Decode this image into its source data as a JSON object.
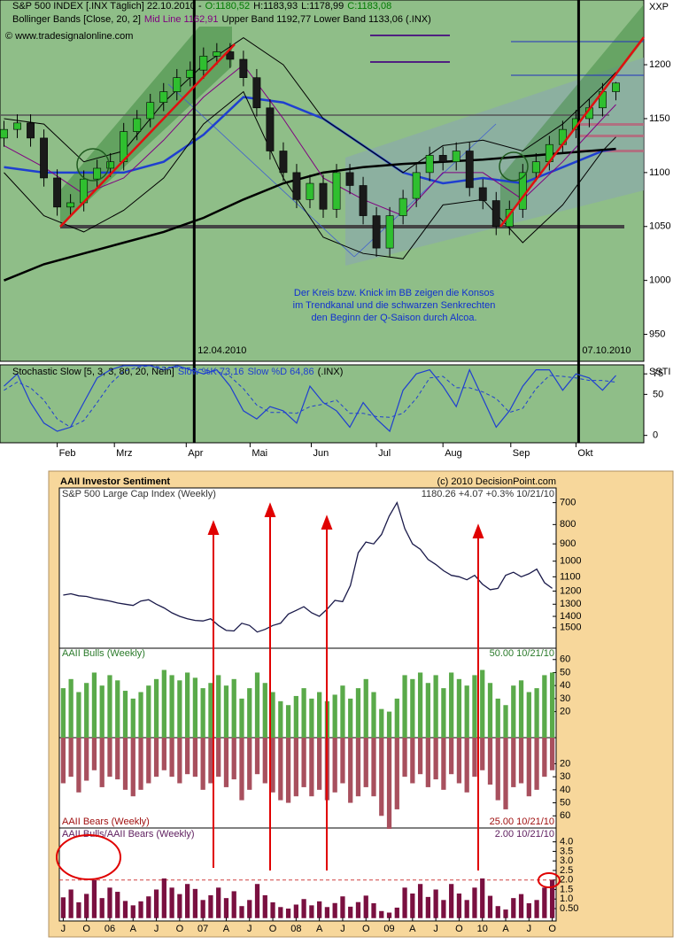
{
  "chart_data": [
    {
      "type": "candlestick",
      "header": [
        {
          "text": "S&P 500 INDEX [.INX  Täglich] 22.10.2010 -",
          "color": "#000000"
        },
        {
          "text": "O:1180,52",
          "color": "#007a00"
        },
        {
          "text": "H:1183,93",
          "color": "#000000"
        },
        {
          "text": "L:1178,99",
          "color": "#000000"
        },
        {
          "text": "C:1183,08",
          "color": "#007a00"
        }
      ],
      "subheader": [
        {
          "text": "Bollinger Bands [Close, 20, 2]",
          "color": "#000000"
        },
        {
          "text": "Mid Line 1162,91",
          "color": "#800080"
        },
        {
          "text": "Upper Band 1192,77 Lower Band 1133,06 (.INX)",
          "color": "#000000"
        }
      ],
      "source": "© www.tradesignalonline.com",
      "axis_label": "XXP",
      "note": [
        "Der Kreis bzw. Knick im BB zeigen die Konsos",
        "im Trendkanal und die schwarzen Senkrechten",
        "den Beginn der Q-Saison durch Alcoa."
      ],
      "markers": [
        {
          "x": 14.3,
          "label": "12.04.2010"
        },
        {
          "x": 43.2,
          "label": "07.10.2010"
        }
      ],
      "open": [
        1132,
        1140,
        1146,
        1132,
        1095,
        1068,
        1072,
        1094,
        1104,
        1110,
        1138,
        1150,
        1165,
        1175,
        1188,
        1195,
        1208,
        1212,
        1205,
        1188,
        1160,
        1120,
        1100,
        1075,
        1090,
        1066,
        1100,
        1088,
        1060,
        1030,
        1060,
        1076,
        1100,
        1116,
        1110,
        1120,
        1086,
        1074,
        1050,
        1066,
        1100,
        1110,
        1126,
        1140,
        1150,
        1160,
        1175
      ],
      "high": [
        1148,
        1154,
        1154,
        1140,
        1103,
        1080,
        1102,
        1112,
        1118,
        1146,
        1158,
        1173,
        1183,
        1196,
        1203,
        1216,
        1220,
        1220,
        1213,
        1196,
        1168,
        1128,
        1108,
        1098,
        1098,
        1108,
        1108,
        1096,
        1068,
        1068,
        1084,
        1108,
        1124,
        1124,
        1128,
        1128,
        1094,
        1082,
        1074,
        1108,
        1118,
        1134,
        1148,
        1158,
        1168,
        1183,
        1184
      ],
      "low": [
        1124,
        1132,
        1124,
        1087,
        1060,
        1060,
        1064,
        1086,
        1096,
        1102,
        1130,
        1142,
        1157,
        1167,
        1180,
        1187,
        1200,
        1197,
        1180,
        1152,
        1112,
        1092,
        1067,
        1067,
        1058,
        1058,
        1080,
        1052,
        1022,
        1022,
        1052,
        1068,
        1092,
        1102,
        1102,
        1078,
        1066,
        1042,
        1042,
        1058,
        1092,
        1102,
        1118,
        1132,
        1142,
        1152,
        1167
      ],
      "close": [
        1140,
        1146,
        1132,
        1095,
        1068,
        1072,
        1094,
        1104,
        1110,
        1138,
        1150,
        1165,
        1175,
        1188,
        1195,
        1208,
        1212,
        1205,
        1188,
        1160,
        1120,
        1100,
        1075,
        1090,
        1066,
        1100,
        1088,
        1060,
        1030,
        1060,
        1076,
        1100,
        1116,
        1110,
        1120,
        1086,
        1074,
        1050,
        1066,
        1100,
        1110,
        1126,
        1140,
        1150,
        1160,
        1175,
        1183
      ],
      "up_color": "#2fbf2f",
      "down_color": "#1a1a1a",
      "overlays": [
        {
          "color": "#1f3fd0",
          "width": 2.5,
          "x": [
            0,
            3,
            6,
            9,
            12,
            15,
            18,
            21,
            24,
            27,
            30,
            33,
            36,
            39,
            42,
            45,
            46
          ],
          "values": [
            1105,
            1100,
            1100,
            1100,
            1110,
            1135,
            1170,
            1165,
            1150,
            1125,
            1100,
            1090,
            1095,
            1090,
            1105,
            1120,
            1122
          ]
        },
        {
          "color": "#000000",
          "width": 2.5,
          "x": [
            0,
            3,
            6,
            9,
            12,
            15,
            18,
            21,
            24,
            27,
            30,
            33,
            36,
            39,
            42,
            45,
            46
          ],
          "values": [
            1000,
            1015,
            1025,
            1035,
            1045,
            1058,
            1075,
            1090,
            1100,
            1105,
            1108,
            1110,
            1112,
            1115,
            1118,
            1121,
            1122
          ]
        },
        {
          "color": "#800080",
          "width": 1,
          "x": [
            0,
            3,
            6,
            9,
            12,
            15,
            18,
            21,
            24,
            27,
            30,
            33,
            36,
            39,
            42,
            45,
            46
          ],
          "values": [
            1125,
            1105,
            1080,
            1095,
            1130,
            1170,
            1200,
            1150,
            1095,
            1075,
            1060,
            1100,
            1100,
            1075,
            1110,
            1150,
            1163
          ]
        },
        {
          "color": "#000000",
          "width": 1,
          "x": [
            0,
            3,
            6,
            9,
            12,
            15,
            18,
            21,
            24,
            27,
            30,
            33,
            36,
            39,
            42,
            45,
            46
          ],
          "values": [
            1150,
            1145,
            1110,
            1120,
            1165,
            1200,
            1225,
            1200,
            1150,
            1125,
            1100,
            1125,
            1130,
            1120,
            1145,
            1180,
            1193
          ]
        },
        {
          "color": "#000000",
          "width": 1,
          "x": [
            0,
            3,
            6,
            9,
            12,
            15,
            18,
            21,
            24,
            27,
            30,
            33,
            36,
            39,
            42,
            45,
            46
          ],
          "values": [
            1100,
            1060,
            1045,
            1065,
            1095,
            1145,
            1175,
            1095,
            1040,
            1025,
            1020,
            1070,
            1075,
            1035,
            1070,
            1120,
            1133
          ]
        }
      ],
      "xlim": [
        -0.3,
        48.1
      ],
      "xticks": [
        {
          "value": 4,
          "label": "Feb"
        },
        {
          "value": 8.3,
          "label": "Mrz"
        },
        {
          "value": 13.7,
          "label": "Apr"
        },
        {
          "value": 18.5,
          "label": "Mai"
        },
        {
          "value": 23.1,
          "label": "Jun"
        },
        {
          "value": 28,
          "label": "Jul"
        },
        {
          "value": 33,
          "label": "Aug"
        },
        {
          "value": 38.1,
          "label": "Sep"
        },
        {
          "value": 43,
          "label": "Okt"
        }
      ],
      "ylim": [
        925,
        1260
      ],
      "yticks": [
        950,
        1000,
        1050,
        1100,
        1150,
        1200
      ]
    },
    {
      "type": "line",
      "header": [
        {
          "text": "Stochastic Slow [5, 3, 3, 80, 20, Nein]",
          "color": "#000000"
        },
        {
          "text": "Slow %K 73,16",
          "color": "#1f3fd0"
        },
        {
          "text": "Slow %D 64,86",
          "color": "#1f3fd0"
        },
        {
          "text": "(.INX)",
          "color": "#000000"
        }
      ],
      "axis_label": "SSTI",
      "series": [
        {
          "color": "#1f3fd0",
          "dash": false,
          "values": [
            60,
            75,
            40,
            15,
            5,
            10,
            40,
            70,
            80,
            85,
            85,
            85,
            80,
            85,
            80,
            75,
            80,
            60,
            30,
            20,
            35,
            30,
            15,
            60,
            40,
            30,
            10,
            40,
            20,
            5,
            55,
            75,
            80,
            60,
            35,
            80,
            45,
            10,
            30,
            60,
            80,
            80,
            55,
            75,
            70,
            55,
            73
          ]
        },
        {
          "color": "#1f3fd0",
          "dash": true,
          "values": [
            55,
            65,
            58,
            43,
            20,
            10,
            18,
            40,
            63,
            78,
            83,
            85,
            83,
            83,
            82,
            80,
            78,
            72,
            57,
            37,
            28,
            28,
            27,
            35,
            38,
            43,
            27,
            27,
            23,
            22,
            27,
            45,
            70,
            72,
            58,
            58,
            53,
            45,
            28,
            33,
            57,
            73,
            72,
            70,
            67,
            67,
            65
          ]
        }
      ],
      "ylim": [
        -9,
        86
      ],
      "yticks": [
        0,
        50,
        75
      ]
    },
    {
      "type": "line",
      "panel_title": "AAII Investor Sentiment",
      "copyright": "(c) 2010 DecisionPoint.com",
      "title": "S&P 500 Large Cap Index (Weekly)",
      "last": "1180.26  +4.07  +0.3%  10/21/10",
      "log": true,
      "color": "#1a1a4a",
      "values": [
        1230,
        1220,
        1235,
        1240,
        1255,
        1265,
        1275,
        1290,
        1300,
        1310,
        1275,
        1265,
        1300,
        1330,
        1370,
        1400,
        1420,
        1435,
        1440,
        1420,
        1480,
        1525,
        1530,
        1460,
        1480,
        1540,
        1515,
        1480,
        1460,
        1380,
        1350,
        1320,
        1370,
        1400,
        1340,
        1270,
        1280,
        1160,
        950,
        890,
        900,
        850,
        760,
        700,
        820,
        900,
        930,
        990,
        1020,
        1060,
        1090,
        1100,
        1120,
        1090,
        1150,
        1190,
        1180,
        1090,
        1070,
        1100,
        1080,
        1050,
        1140,
        1180
      ],
      "xlim": [
        -0.5,
        63.5
      ],
      "xticks": [
        {
          "value": 0,
          "label": "J"
        },
        {
          "value": 3,
          "label": "O"
        },
        {
          "value": 6,
          "label": "06"
        },
        {
          "value": 9,
          "label": "A"
        },
        {
          "value": 12,
          "label": "J"
        },
        {
          "value": 15,
          "label": "O"
        },
        {
          "value": 18,
          "label": "07"
        },
        {
          "value": 21,
          "label": "A"
        },
        {
          "value": 24,
          "label": "J"
        },
        {
          "value": 27,
          "label": "O"
        },
        {
          "value": 30,
          "label": "08"
        },
        {
          "value": 33,
          "label": "A"
        },
        {
          "value": 36,
          "label": "J"
        },
        {
          "value": 39,
          "label": "O"
        },
        {
          "value": 42,
          "label": "09"
        },
        {
          "value": 45,
          "label": "A"
        },
        {
          "value": 48,
          "label": "J"
        },
        {
          "value": 51,
          "label": "O"
        },
        {
          "value": 54,
          "label": "10"
        },
        {
          "value": 57,
          "label": "A"
        },
        {
          "value": 60,
          "label": "J"
        },
        {
          "value": 63,
          "label": "O"
        }
      ],
      "ylim": [
        640,
        1700
      ],
      "yticks": [
        700,
        800,
        900,
        1000,
        1100,
        1200,
        1300,
        1400,
        1500
      ]
    },
    {
      "type": "bar",
      "title": "AAII Bulls (Weekly)",
      "last": "50.00  10/21/10",
      "color": "#5aaa4a",
      "title_color": "#2a7a2a",
      "values": [
        38,
        45,
        35,
        42,
        50,
        40,
        48,
        44,
        36,
        30,
        35,
        40,
        45,
        52,
        48,
        44,
        50,
        46,
        38,
        42,
        48,
        40,
        45,
        30,
        38,
        50,
        42,
        35,
        28,
        25,
        32,
        38,
        30,
        35,
        28,
        33,
        40,
        30,
        38,
        45,
        35,
        22,
        20,
        30,
        48,
        45,
        50,
        42,
        48,
        38,
        50,
        45,
        40,
        48,
        52,
        42,
        30,
        25,
        40,
        44,
        35,
        38,
        48,
        50
      ],
      "ylim": [
        0,
        68
      ],
      "yticks": [
        20,
        30,
        40,
        50,
        60
      ]
    },
    {
      "type": "bar",
      "title": "AAII Bears (Weekly)",
      "last": "25.00  10/21/10",
      "color": "#a8505e",
      "title_color": "#a01010",
      "inverted": true,
      "values": [
        35,
        30,
        42,
        33,
        25,
        38,
        30,
        32,
        40,
        45,
        40,
        35,
        30,
        25,
        30,
        35,
        28,
        30,
        40,
        35,
        30,
        38,
        32,
        48,
        40,
        28,
        35,
        42,
        48,
        50,
        45,
        38,
        45,
        40,
        48,
        42,
        35,
        50,
        45,
        38,
        45,
        60,
        70,
        55,
        30,
        35,
        28,
        38,
        32,
        40,
        28,
        35,
        42,
        30,
        25,
        36,
        48,
        55,
        38,
        35,
        45,
        40,
        30,
        25
      ],
      "ylim": [
        0,
        70
      ],
      "yticks": [
        20,
        30,
        40,
        50,
        60
      ]
    },
    {
      "type": "bar",
      "title": "AAII Bulls/AAII Bears (Weekly)",
      "last": "2.00  10/21/10",
      "color": "#7a1040",
      "title_color": "#602060",
      "reference_lines": [
        {
          "value": 2,
          "color": "#d04040"
        }
      ],
      "values": [
        1.09,
        1.5,
        0.83,
        1.27,
        2.0,
        1.05,
        1.6,
        1.38,
        0.9,
        0.67,
        0.88,
        1.14,
        1.5,
        2.08,
        1.6,
        1.26,
        1.79,
        1.53,
        0.95,
        1.2,
        1.6,
        1.05,
        1.41,
        0.63,
        0.95,
        1.79,
        1.2,
        0.83,
        0.58,
        0.5,
        0.71,
        1.0,
        0.67,
        0.88,
        0.58,
        0.79,
        1.14,
        0.6,
        0.84,
        1.18,
        0.78,
        0.37,
        0.29,
        0.55,
        1.6,
        1.29,
        1.79,
        1.11,
        1.5,
        0.95,
        1.79,
        1.29,
        0.95,
        1.6,
        2.08,
        1.17,
        0.63,
        0.45,
        1.05,
        1.26,
        0.78,
        0.95,
        1.6,
        2.0
      ],
      "ylim": [
        -0.15,
        4.68
      ],
      "yticks": [
        {
          "value": 4,
          "label": "4.0"
        },
        3.5,
        {
          "value": 3,
          "label": "3.0"
        },
        2.5,
        {
          "value": 2,
          "label": "2.0"
        },
        1.5,
        {
          "value": 1,
          "label": "1.0"
        },
        {
          "value": 0.5,
          "label": "0.50"
        }
      ]
    }
  ]
}
